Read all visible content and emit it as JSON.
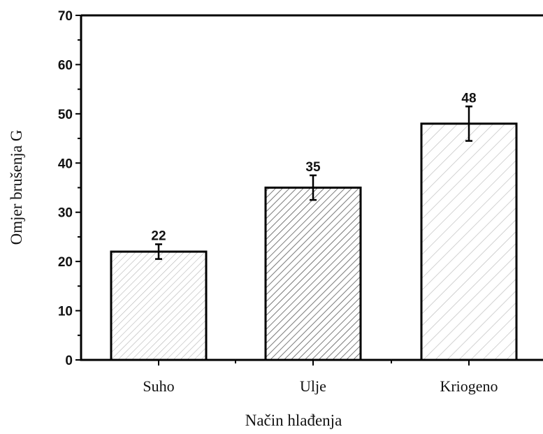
{
  "chart_data": {
    "type": "bar",
    "title": "",
    "xlabel": "Način hlađenja",
    "ylabel": "Omjer brušenja G",
    "categories": [
      "Suho",
      "Ulje",
      "Kriogeno"
    ],
    "values": [
      22,
      35,
      48
    ],
    "data_labels": [
      "22",
      "35",
      "48"
    ],
    "error_bars": [
      1.5,
      2.5,
      3.5
    ],
    "ylim": [
      0,
      70
    ],
    "yticks": [
      0,
      10,
      20,
      30,
      40,
      50,
      60,
      70
    ],
    "grid": false,
    "legend": "none",
    "colors": {
      "outline": "#000000",
      "hatch": [
        "#b5b5b5",
        "#5a5a5a",
        "#c0c0c0"
      ]
    }
  }
}
